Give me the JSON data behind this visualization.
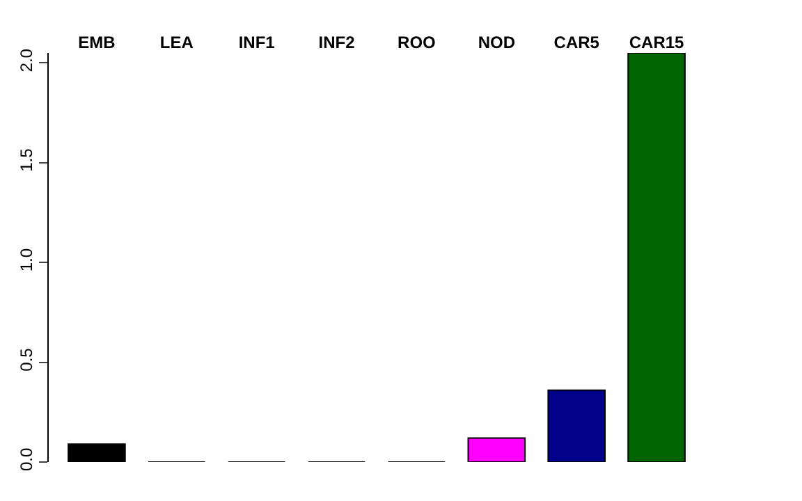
{
  "chart_data": {
    "type": "bar",
    "categories": [
      "EMB",
      "LEA",
      "INF1",
      "INF2",
      "ROO",
      "NOD",
      "CAR5",
      "CAR15"
    ],
    "values": [
      0.09,
      0,
      0,
      0,
      0,
      0.12,
      0.36,
      2.05
    ],
    "colors": [
      "#000000",
      "#000000",
      "#000000",
      "#000000",
      "#000000",
      "#ff00ff",
      "#00008b",
      "#006400"
    ],
    "ylim": [
      0,
      2.05
    ],
    "yticks": [
      {
        "value": 0,
        "label": "0.0"
      },
      0.5,
      {
        "value": 1,
        "label": "1.0"
      },
      1.5,
      {
        "value": 2,
        "label": "2.0"
      }
    ]
  }
}
